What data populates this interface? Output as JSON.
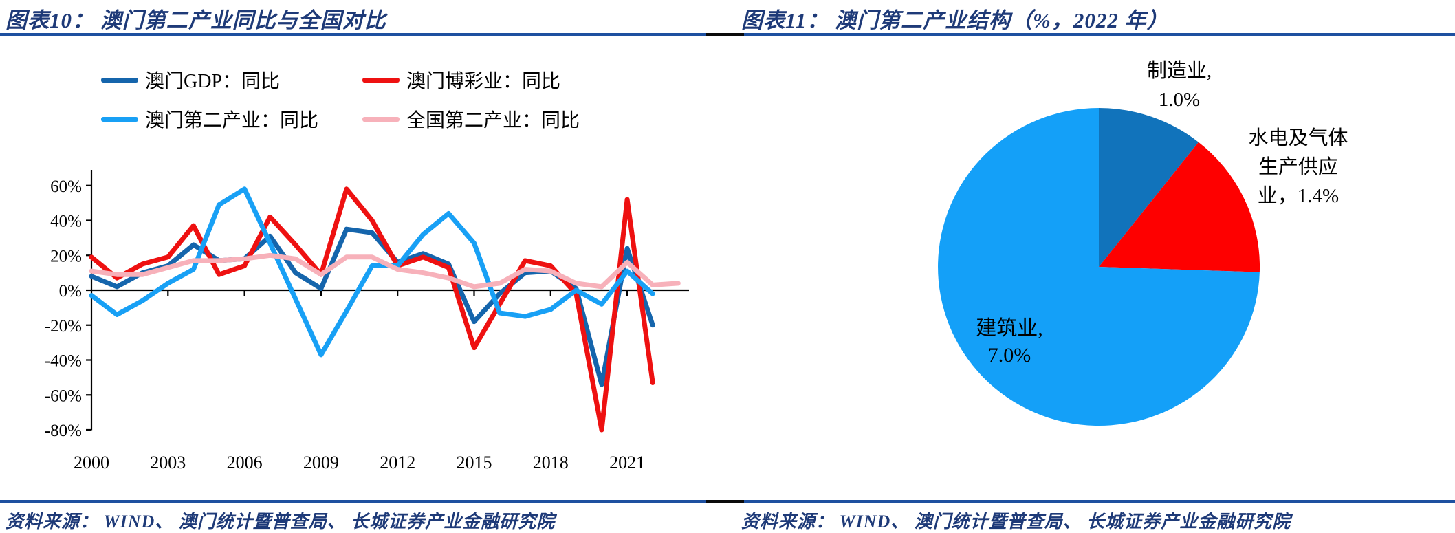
{
  "figure10": {
    "title": "图表10：  澳门第二产业同比与全国对比",
    "source": "资料来源：  WIND、  澳门统计暨普查局、  长城证券产业金融研究院"
  },
  "figure11": {
    "title": "图表11：  澳门第二产业结构（%，2022 年）",
    "source": "资料来源：  WIND、  澳门统计暨普查局、  长城证券产业金融研究院",
    "labels": {
      "manufacturing": [
        "制造业,",
        "1.0%"
      ],
      "utilities": [
        "水电及气体",
        "生产供应",
        "业，1.4%"
      ],
      "construction": [
        "建筑业,",
        "7.0%"
      ]
    }
  },
  "colors": {
    "title_navy": "#1e3a78",
    "rule_blue": "#1e50a0",
    "macau_gdp_blue": "#1565ac",
    "macau_gaming_red": "#ee1111",
    "macau_secondary_light_blue": "#18a0f5",
    "china_secondary_pink": "#f7b1ba",
    "pie_manufacturing_blue": "#1173bb",
    "pie_utilities_red": "#fe0000",
    "pie_construction_light_blue": "#14a0f8",
    "axis_black": "#000000"
  },
  "chart_data": [
    {
      "type": "line",
      "title": "澳门第二产业同比与全国对比",
      "x": [
        2000,
        2001,
        2002,
        2003,
        2004,
        2005,
        2006,
        2007,
        2008,
        2009,
        2010,
        2011,
        2012,
        2013,
        2014,
        2015,
        2016,
        2017,
        2018,
        2019,
        2020,
        2021,
        2022,
        2023
      ],
      "series": [
        {
          "id": "macau-gdp",
          "name": "澳门GDP：同比",
          "color": "#1565ac",
          "values": [
            8,
            2,
            10,
            14,
            26,
            17,
            18,
            31,
            10,
            1,
            35,
            33,
            16,
            21,
            15,
            -18,
            -2,
            10,
            11,
            1,
            -54,
            24,
            -20
          ]
        },
        {
          "id": "macau-gaming",
          "name": "澳门博彩业：同比",
          "color": "#ee1111",
          "values": [
            19,
            7,
            15,
            19,
            37,
            9,
            14,
            42,
            26,
            9,
            58,
            40,
            14,
            19,
            13,
            -33,
            -8,
            17,
            14,
            -2,
            -80,
            52,
            -53
          ]
        },
        {
          "id": "macau-secondary-industry",
          "name": "澳门第二产业：同比",
          "color": "#18a0f5",
          "values": [
            -3,
            -14,
            -6,
            4,
            12,
            49,
            58,
            27,
            -5,
            -37,
            -12,
            14,
            14,
            32,
            44,
            27,
            -13,
            -15,
            -11,
            0,
            -8,
            11,
            -2
          ]
        },
        {
          "id": "china-secondary-industry",
          "name": "全国第二产业：同比",
          "color": "#f7b1ba",
          "values": [
            11,
            9,
            9,
            13,
            17,
            17,
            18,
            20,
            18,
            9,
            19,
            19,
            12,
            10,
            7,
            2,
            4,
            12,
            11,
            4,
            2,
            16,
            3,
            4
          ]
        }
      ],
      "ylim": [
        -80,
        60
      ],
      "ytick_labels": [
        "60%",
        "40%",
        "20%",
        "0%",
        "-20%",
        "-40%",
        "-60%",
        "-80%"
      ],
      "ytick_values": [
        60,
        40,
        20,
        0,
        -20,
        -40,
        -60,
        -80
      ],
      "xtick_labels": [
        "2000",
        "2003",
        "2006",
        "2009",
        "2012",
        "2015",
        "2018",
        "2021"
      ],
      "xtick_values": [
        2000,
        2003,
        2006,
        2009,
        2012,
        2015,
        2018,
        2021
      ],
      "grid": false,
      "legend_position": "top",
      "unit": "%"
    },
    {
      "type": "pie",
      "title": "澳门第二产业结构（%，2022 年）",
      "slices": [
        {
          "id": "manufacturing",
          "label": "制造业",
          "value": 1.0,
          "display": "制造业, 1.0%",
          "color": "#1173bb"
        },
        {
          "id": "utilities",
          "label": "水电及气体生产供应业",
          "value": 1.4,
          "display": "水电及气体生产供应业, 1.4%",
          "color": "#fe0000"
        },
        {
          "id": "construction",
          "label": "建筑业",
          "value": 7.0,
          "display": "建筑业, 7.0%",
          "color": "#14a0f8"
        }
      ],
      "start_angle_deg_from_north": 0,
      "direction": "clockwise",
      "unit": "%"
    }
  ]
}
